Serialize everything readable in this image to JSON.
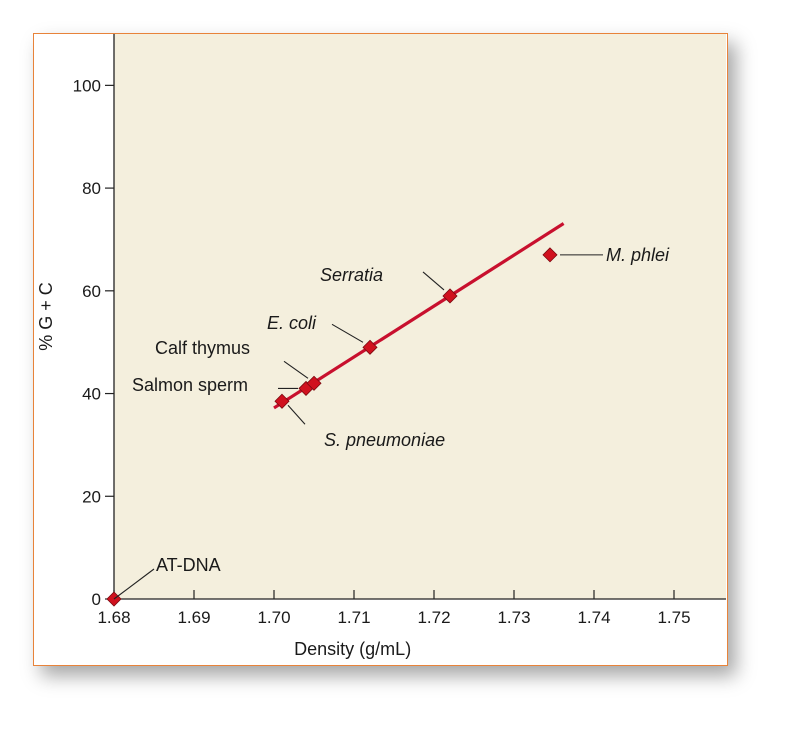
{
  "chart_data": {
    "type": "scatter",
    "xlabel": "Density (g/mL)",
    "ylabel": "% G + C",
    "xlim": [
      1.68,
      1.7565
    ],
    "ylim": [
      0,
      110
    ],
    "xticks": [
      "1.68",
      "1.69",
      "1.70",
      "1.71",
      "1.72",
      "1.73",
      "1.74",
      "1.75"
    ],
    "yticks": [
      "0",
      "20",
      "40",
      "60",
      "80",
      "100"
    ],
    "grid": false,
    "colors": {
      "plot_background": "#f4efdd",
      "marker": "#d0111e",
      "fit_line": "#c8102e",
      "frame_border": "#e8833a"
    },
    "points": [
      {
        "label": "AT-DNA",
        "x": 1.68,
        "y": 0,
        "italic": false
      },
      {
        "label": "S. pneumoniae",
        "x": 1.701,
        "y": 38.5,
        "italic": true
      },
      {
        "label": "Salmon sperm",
        "x": 1.704,
        "y": 41,
        "italic": false
      },
      {
        "label": "Calf thymus",
        "x": 1.705,
        "y": 42,
        "italic": false
      },
      {
        "label": "E. coli",
        "x": 1.712,
        "y": 49,
        "italic": true
      },
      {
        "label": "Serratia",
        "x": 1.722,
        "y": 59,
        "italic": true
      },
      {
        "label": "M. phlei",
        "x": 1.7345,
        "y": 67,
        "italic": true
      }
    ],
    "fit_line": {
      "x": [
        1.7,
        1.7362
      ],
      "y": [
        37.2,
        73.1
      ]
    }
  }
}
